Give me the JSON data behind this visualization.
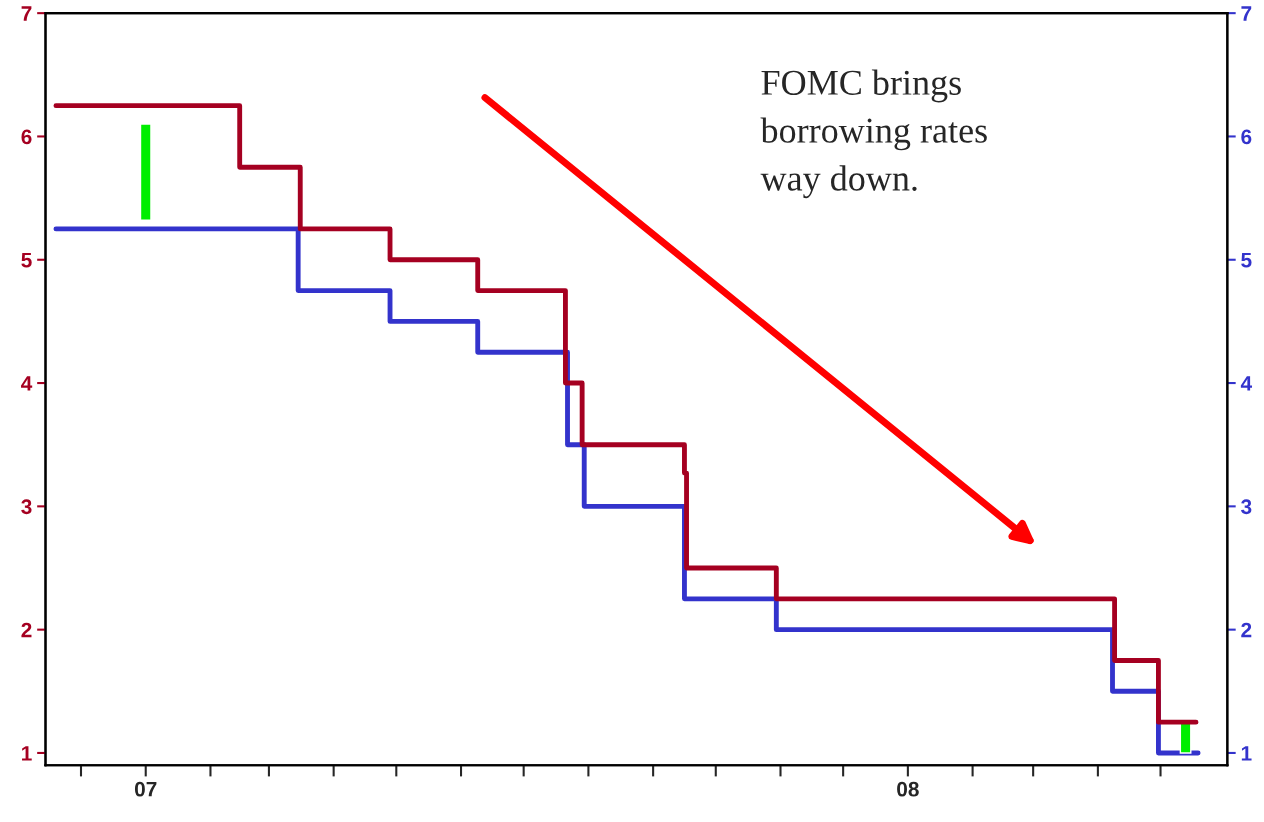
{
  "chart_data": {
    "type": "step",
    "annotations": [
      "FOMC brings\nborrowing rates\nway down."
    ],
    "xlim": [
      "2006-11-14",
      "2008-06-02"
    ],
    "xticks": [
      {
        "value": "2006-12",
        "label": null
      },
      {
        "value": "2007-01",
        "label": "07"
      },
      {
        "value": "2007-02",
        "label": null
      },
      {
        "value": "2007-03",
        "label": null
      },
      {
        "value": "2007-04",
        "label": null
      },
      {
        "value": "2007-05",
        "label": null
      },
      {
        "value": "2007-06",
        "label": null
      },
      {
        "value": "2007-07",
        "label": null
      },
      {
        "value": "2007-08",
        "label": null
      },
      {
        "value": "2007-09",
        "label": null
      },
      {
        "value": "2007-10",
        "label": null
      },
      {
        "value": "2007-11",
        "label": null
      },
      {
        "value": "2007-12",
        "label": null
      },
      {
        "value": "2008-01",
        "label": "08"
      },
      {
        "value": "2008-02",
        "label": null
      },
      {
        "value": "2008-03",
        "label": null
      },
      {
        "value": "2008-04",
        "label": null
      },
      {
        "value": "2008-05",
        "label": null
      }
    ],
    "ylim": [
      0.9,
      7
    ],
    "yticks": [
      1,
      2,
      3,
      4,
      5,
      6,
      7
    ],
    "y2lim": [
      0.9,
      7
    ],
    "y2ticks": [
      1,
      2,
      3,
      4,
      5,
      6,
      7
    ],
    "series": [
      {
        "color": "#a50021",
        "x": [
          "2006-11-19",
          "2007-02-15",
          "2007-03-16",
          "2007-04-28",
          "2007-06-09",
          "2007-07-21",
          "2007-07-29",
          "2007-09-16",
          "2007-09-17",
          "2007-10-30",
          "2008-04-09",
          "2008-04-30",
          "2008-05-18"
        ],
        "values": [
          6.25,
          5.75,
          5.25,
          5.0,
          4.75,
          4.0,
          3.5,
          3.27,
          2.5,
          2.25,
          1.75,
          1.25,
          1.25
        ]
      },
      {
        "axis": "y2",
        "color": "#3333cc",
        "x": [
          "2006-11-19",
          "2007-03-15",
          "2007-04-28",
          "2007-06-09",
          "2007-07-22",
          "2007-07-30",
          "2007-09-16",
          "2007-10-30",
          "2008-04-08",
          "2008-04-30",
          "2008-05-19"
        ],
        "values": [
          5.25,
          4.75,
          4.5,
          4.25,
          3.5,
          3.0,
          2.25,
          2.0,
          1.5,
          1.0,
          1.0
        ]
      },
      {
        "type": "bar",
        "color": "#00ee00",
        "x": [
          "2007-01-01",
          "2008-05-13"
        ],
        "base": [
          5.32,
          1.0
        ],
        "values": [
          0.78,
          0.25
        ]
      }
    ]
  }
}
